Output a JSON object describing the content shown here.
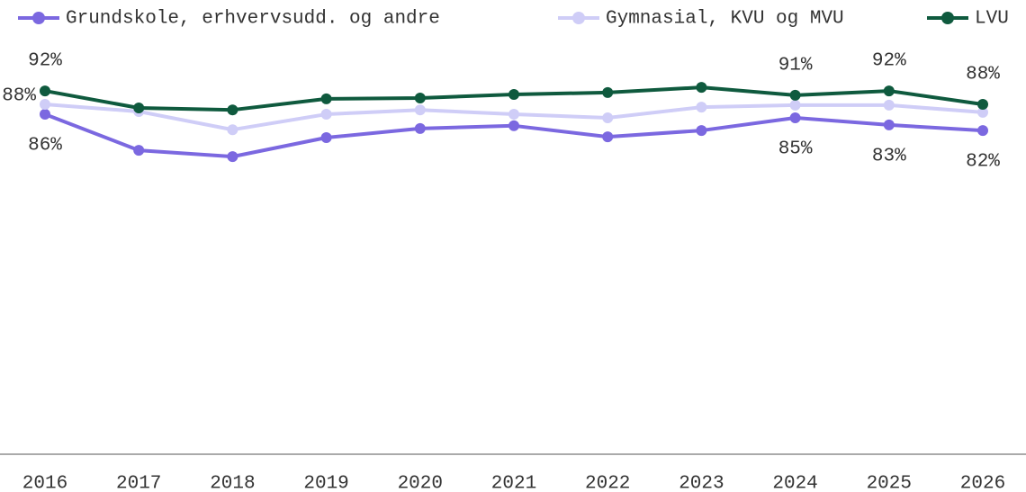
{
  "chart_data": {
    "type": "line",
    "categories": [
      "2016",
      "2017",
      "2018",
      "2019",
      "2020",
      "2021",
      "2022",
      "2023",
      "2024",
      "2025",
      "2026"
    ],
    "ylim": [
      0,
      100
    ],
    "series": [
      {
        "name": "Grundskole, erhvervsudd. og andre",
        "color": "#7b68e0",
        "values": [
          85.9,
          76.8,
          75.2,
          80.0,
          82.3,
          83.0,
          80.2,
          81.8,
          85.0,
          83.2,
          81.8
        ],
        "value_labels": [
          "86%",
          null,
          null,
          null,
          null,
          null,
          null,
          null,
          "85%",
          "83%",
          "82%"
        ]
      },
      {
        "name": "Gymnasial, KVU og MVU",
        "color": "#cfcdf7",
        "values": [
          88.4,
          86.6,
          82.0,
          85.9,
          87.0,
          85.9,
          85.0,
          87.7,
          88.2,
          88.2,
          86.4
        ],
        "value_labels": [
          "88%",
          null,
          null,
          null,
          null,
          null,
          null,
          null,
          null,
          null,
          null
        ]
      },
      {
        "name": "LVU",
        "color": "#0f5a3e",
        "values": [
          91.8,
          87.5,
          87.0,
          89.8,
          90.0,
          90.9,
          91.4,
          92.7,
          90.7,
          91.8,
          88.4
        ],
        "value_labels": [
          "92%",
          null,
          null,
          null,
          null,
          null,
          null,
          null,
          "91%",
          "92%",
          "88%"
        ]
      }
    ]
  }
}
